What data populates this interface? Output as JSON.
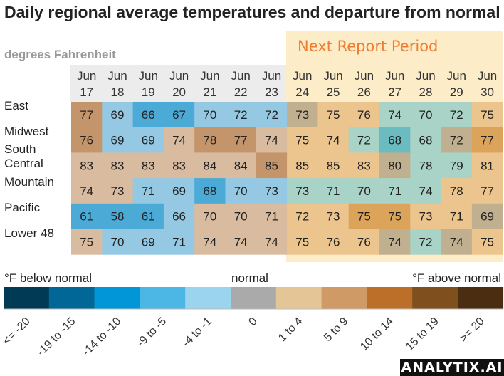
{
  "chart_data": {
    "type": "heatmap",
    "title": "Daily regional average temperatures and departure from normal",
    "subtitle": "degrees Fahrenheit",
    "annotation": "Next Report Period",
    "annotation_starts_at": "Jun 24",
    "columns": [
      "Jun 17",
      "Jun 18",
      "Jun 19",
      "Jun 20",
      "Jun 21",
      "Jun 22",
      "Jun 23",
      "Jun 24",
      "Jun 25",
      "Jun 26",
      "Jun 27",
      "Jun 28",
      "Jun 29",
      "Jun 30"
    ],
    "columns_top": [
      "Jun",
      "Jun",
      "Jun",
      "Jun",
      "Jun",
      "Jun",
      "Jun",
      "Jun",
      "Jun",
      "Jun",
      "Jun",
      "Jun",
      "Jun",
      "Jun"
    ],
    "columns_bottom": [
      "17",
      "18",
      "19",
      "20",
      "21",
      "22",
      "23",
      "24",
      "25",
      "26",
      "27",
      "28",
      "29",
      "30"
    ],
    "rows": [
      {
        "label": [
          "East"
        ],
        "values": [
          77,
          69,
          66,
          67,
          70,
          72,
          72,
          73,
          75,
          76,
          74,
          70,
          72,
          75
        ],
        "categories": [
          "5 to 9",
          "-4 to -1",
          "-9 to -5",
          "-9 to -5",
          "-4 to -1",
          "-4 to -1",
          "-4 to -1",
          "0",
          "1 to 4",
          "1 to 4",
          "-4 to -1",
          "-4 to -1",
          "-4 to -1",
          "1 to 4"
        ]
      },
      {
        "label": [
          "Midwest"
        ],
        "values": [
          76,
          69,
          69,
          74,
          78,
          77,
          74,
          75,
          74,
          72,
          68,
          68,
          72,
          77
        ],
        "categories": [
          "5 to 9",
          "-4 to -1",
          "-4 to -1",
          "1 to 4",
          "5 to 9",
          "5 to 9",
          "1 to 4",
          "1 to 4",
          "1 to 4",
          "-4 to -1",
          "-9 to -5",
          "-4 to -1",
          "0",
          "5 to 9"
        ]
      },
      {
        "label": [
          "South",
          "Central"
        ],
        "values": [
          83,
          83,
          83,
          83,
          84,
          84,
          85,
          85,
          85,
          83,
          80,
          78,
          79,
          81
        ],
        "categories": [
          "1 to 4",
          "1 to 4",
          "1 to 4",
          "1 to 4",
          "1 to 4",
          "1 to 4",
          "5 to 9",
          "1 to 4",
          "1 to 4",
          "1 to 4",
          "0",
          "-4 to -1",
          "-4 to -1",
          "1 to 4"
        ]
      },
      {
        "label": [
          "Mountain"
        ],
        "values": [
          74,
          73,
          71,
          69,
          68,
          70,
          73,
          73,
          71,
          70,
          71,
          74,
          78,
          77
        ],
        "categories": [
          "1 to 4",
          "1 to 4",
          "-4 to -1",
          "-4 to -1",
          "-9 to -5",
          "-4 to -1",
          "-4 to -1",
          "-4 to -1",
          "-4 to -1",
          "-4 to -1",
          "-4 to -1",
          "-4 to -1",
          "1 to 4",
          "1 to 4"
        ]
      },
      {
        "label": [
          "Pacific"
        ],
        "values": [
          61,
          58,
          61,
          66,
          70,
          70,
          71,
          72,
          73,
          75,
          75,
          73,
          71,
          69
        ],
        "categories": [
          "-9 to -5",
          "-9 to -5",
          "-9 to -5",
          "-4 to -1",
          "1 to 4",
          "1 to 4",
          "1 to 4",
          "1 to 4",
          "1 to 4",
          "5 to 9",
          "5 to 9",
          "1 to 4",
          "1 to 4",
          "0"
        ]
      },
      {
        "label": [
          "Lower 48"
        ],
        "values": [
          75,
          70,
          69,
          71,
          74,
          74,
          74,
          75,
          76,
          76,
          74,
          72,
          74,
          75
        ],
        "categories": [
          "1 to 4",
          "-4 to -1",
          "-4 to -1",
          "-4 to -1",
          "1 to 4",
          "1 to 4",
          "1 to 4",
          "1 to 4",
          "1 to 4",
          "1 to 4",
          "0",
          "-4 to -1",
          "0",
          "1 to 4"
        ]
      }
    ],
    "legend": {
      "below_label": "°F below normal",
      "normal_label": "normal",
      "above_label": "°F above normal",
      "bins": [
        {
          "label": "<= -20",
          "color": "#003a55"
        },
        {
          "label": "-19 to -15",
          "color": "#006796"
        },
        {
          "label": "-14 to -10",
          "color": "#0096d8"
        },
        {
          "label": "-9 to -5",
          "color": "#4cb6e4"
        },
        {
          "label": "-4 to -1",
          "color": "#9bd4ee"
        },
        {
          "label": "0",
          "color": "#aaaaaa"
        },
        {
          "label": "1 to 4",
          "color": "#e4c596"
        },
        {
          "label": "5 to 9",
          "color": "#d09a66"
        },
        {
          "label": "10 to 14",
          "color": "#bc6f28"
        },
        {
          "label": "15 to 19",
          "color": "#7f4f1e"
        },
        {
          "label": ">= 20",
          "color": "#4b2d11"
        }
      ]
    },
    "cell_colors": {
      "history": {
        "-9 to -5": "#4baad6",
        "-4 to -1": "#95c9e3",
        "0": "#b5b5b5",
        "1 to 4": "#d9bba0",
        "5 to 9": "#c4956a"
      },
      "forecast": {
        "-9 to -5": "#6bbcc0",
        "-4 to -1": "#a9d3c6",
        "0": "#c0b08f",
        "1 to 4": "#ecc48e",
        "5 to 9": "#dca35a"
      }
    }
  },
  "brand": "ANALYTIX.AI"
}
